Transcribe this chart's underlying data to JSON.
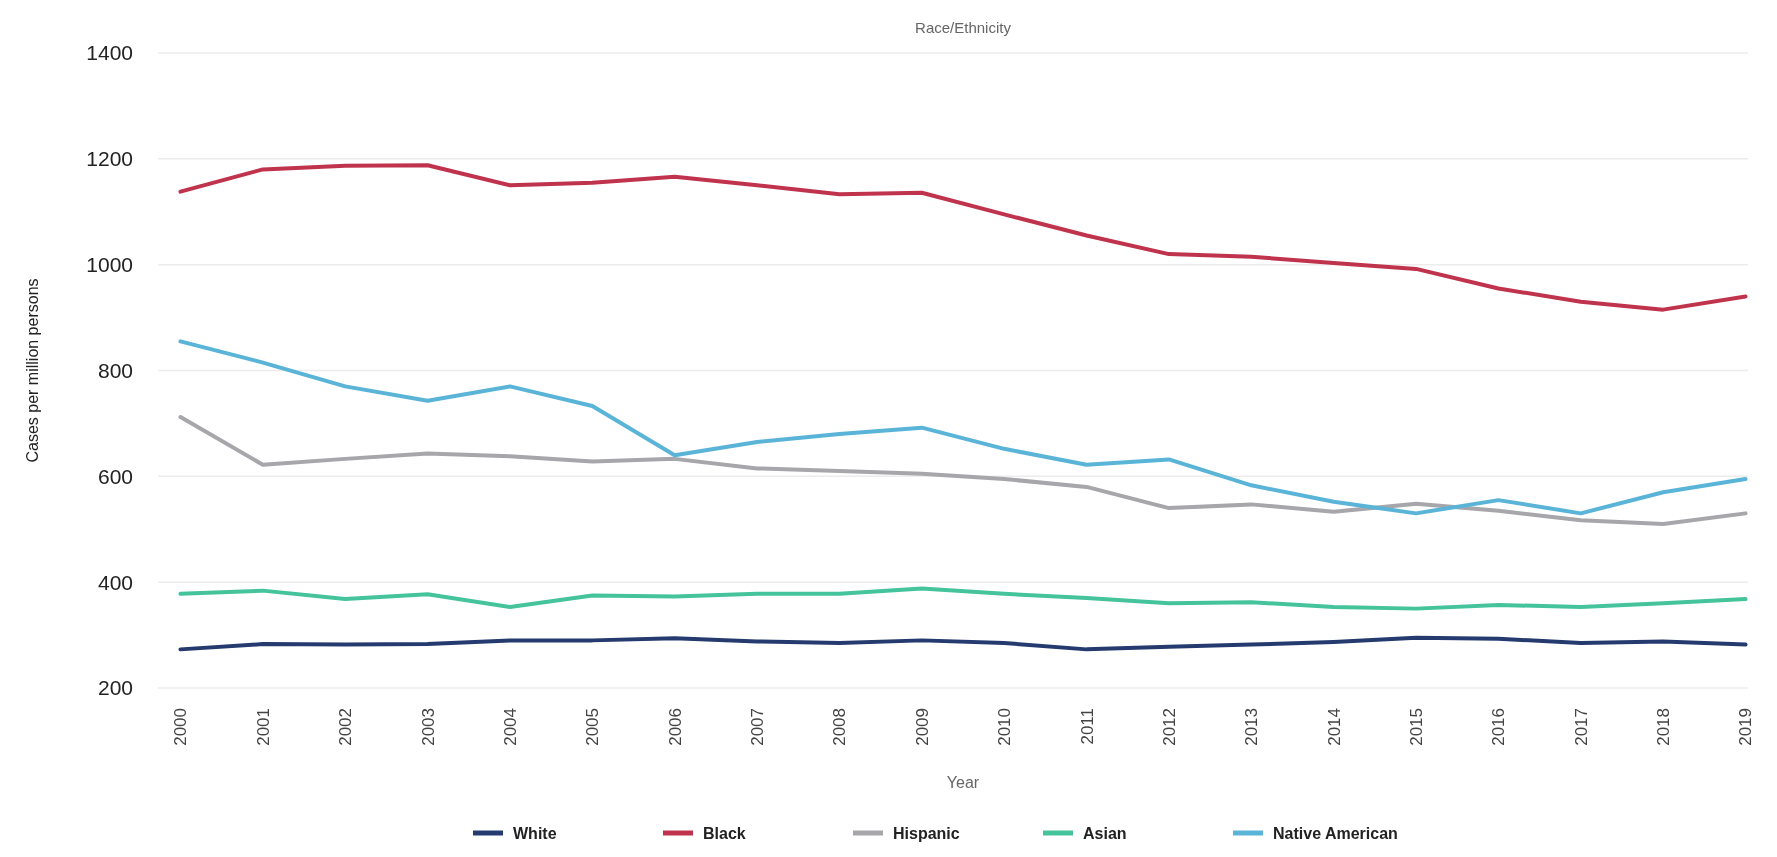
{
  "chart_data": {
    "type": "line",
    "title": "Race/Ethnicity",
    "xlabel": "Year",
    "ylabel": "Cases per million persons",
    "categories": [
      "2000",
      "2001",
      "2002",
      "2003",
      "2004",
      "2005",
      "2006",
      "2007",
      "2008",
      "2009",
      "2010",
      "2011",
      "2012",
      "2013",
      "2014",
      "2015",
      "2016",
      "2017",
      "2018",
      "2019"
    ],
    "ylim": [
      200,
      1400
    ],
    "yticks": [
      200,
      400,
      600,
      800,
      1000,
      1200,
      1400
    ],
    "grid": "y",
    "legend": "bottom",
    "marker": "none",
    "line_style": "solid",
    "series": [
      {
        "name": "White",
        "color": "#253a6e",
        "values": [
          273,
          283,
          282,
          283,
          290,
          290,
          294,
          288,
          285,
          290,
          285,
          273,
          278,
          282,
          287,
          295,
          293,
          285,
          288,
          282
        ]
      },
      {
        "name": "Black",
        "color": "#c0334d",
        "values": [
          1138,
          1180,
          1187,
          1188,
          1150,
          1155,
          1166,
          1150,
          1133,
          1136,
          1095,
          1055,
          1020,
          1015,
          1003,
          992,
          955,
          930,
          915,
          940
        ]
      },
      {
        "name": "Hispanic",
        "color": "#a6a6ab",
        "values": [
          712,
          622,
          633,
          643,
          638,
          628,
          633,
          615,
          610,
          605,
          595,
          580,
          540,
          547,
          533,
          548,
          535,
          517,
          510,
          530
        ]
      },
      {
        "name": "Asian",
        "color": "#45c39a",
        "values": [
          378,
          384,
          368,
          377,
          353,
          375,
          373,
          378,
          378,
          388,
          378,
          370,
          360,
          362,
          353,
          350,
          357,
          353,
          360,
          368
        ]
      },
      {
        "name": "Native American",
        "color": "#5ab4d8",
        "values": [
          855,
          815,
          770,
          743,
          770,
          733,
          640,
          665,
          680,
          692,
          652,
          622,
          632,
          583,
          552,
          530,
          555,
          530,
          570,
          595
        ]
      }
    ]
  }
}
